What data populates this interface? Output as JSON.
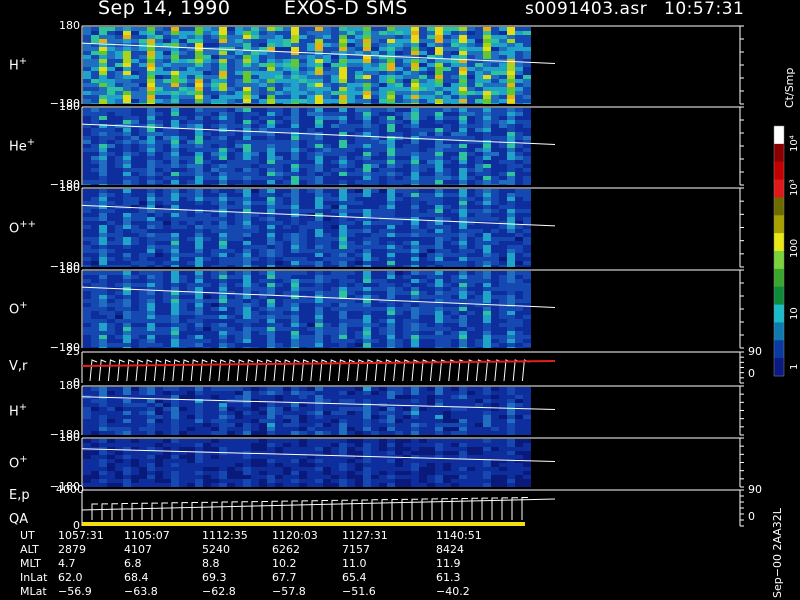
{
  "header": {
    "date": "Sep 14, 1990",
    "instrument": "EXOS-D SMS",
    "file": "s0091403.asr",
    "time": "10:57:31"
  },
  "chart_data": {
    "type": "heatmap",
    "panels": [
      {
        "label": "H",
        "sup": "+",
        "ytop": "180",
        "ybot": "−180",
        "intensity": 0.72
      },
      {
        "label": "He",
        "sup": "+",
        "ytop": "180",
        "ybot": "−180",
        "intensity": 0.42
      },
      {
        "label": "O",
        "sup": "++",
        "ytop": "180",
        "ybot": "−180",
        "intensity": 0.38
      },
      {
        "label": "O",
        "sup": "+",
        "ytop": "180",
        "ybot": "−180",
        "intensity": 0.4
      },
      {
        "label": "V,r",
        "sup": "",
        "ytop": "25",
        "ybot": "0",
        "right_top": "90",
        "right_bot": "0"
      },
      {
        "label": "H",
        "sup": "+",
        "ytop": "180",
        "ybot": "−180",
        "intensity": 0.3
      },
      {
        "label": "O",
        "sup": "+",
        "ytop": "180",
        "ybot": "−180",
        "intensity": 0.22
      },
      {
        "label": "E,p",
        "sup": "",
        "label2": "QA",
        "ytop": "4000",
        "ybot": "0",
        "right_top": "90",
        "right_bot": "0"
      }
    ],
    "colorbar": {
      "unit": "Ct/Smp",
      "ticks": [
        "1",
        "10",
        "100",
        "10³",
        "10⁴"
      ]
    }
  },
  "ephemeris": {
    "rows": [
      {
        "name": "UT",
        "values": [
          "1057:31",
          "1105:07",
          "1112:35",
          "1120:03",
          "1127:31",
          "1140:51"
        ]
      },
      {
        "name": "ALT",
        "values": [
          "2879",
          "4107",
          "5240",
          "6262",
          "7157",
          "8424"
        ]
      },
      {
        "name": "MLT",
        "values": [
          "4.7",
          "6.8",
          "8.8",
          "10.2",
          "11.0",
          "11.9"
        ]
      },
      {
        "name": "InLat",
        "values": [
          "62.0",
          "68.4",
          "69.3",
          "67.7",
          "65.4",
          "61.3"
        ]
      },
      {
        "name": "MLat",
        "values": [
          "−56.9",
          "−63.8",
          "−62.8",
          "−57.8",
          "−51.6",
          "−40.2"
        ]
      }
    ]
  },
  "footer": {
    "version": "Sep−00  2AA32L"
  }
}
